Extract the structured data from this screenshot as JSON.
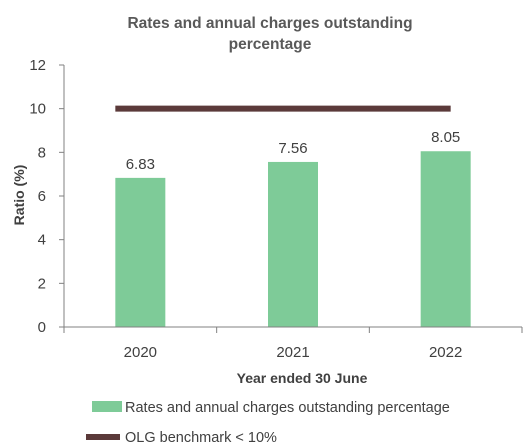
{
  "colors": {
    "bar": "#7ECB98",
    "benchmark": "#5B3A3A",
    "axis": "#808080",
    "text": "#404040",
    "title": "#595959"
  },
  "chart_data": {
    "type": "bar",
    "title_lines": [
      "Rates and annual charges outstanding",
      "percentage"
    ],
    "xlabel": "Year ended 30 June",
    "ylabel": "Ratio (%)",
    "categories": [
      "2020",
      "2021",
      "2022"
    ],
    "ylim": [
      0,
      12
    ],
    "yticks": [
      0,
      2,
      4,
      6,
      8,
      10,
      12
    ],
    "grid": false,
    "legend_position": "bottom",
    "series": [
      {
        "name": "Rates and annual charges outstanding percentage",
        "type": "bar",
        "values": [
          6.83,
          7.56,
          8.05
        ],
        "labels": [
          "6.83",
          "7.56",
          "8.05"
        ]
      },
      {
        "name": "OLG benchmark < 10%",
        "type": "line",
        "values": [
          10,
          10,
          10
        ]
      }
    ]
  }
}
